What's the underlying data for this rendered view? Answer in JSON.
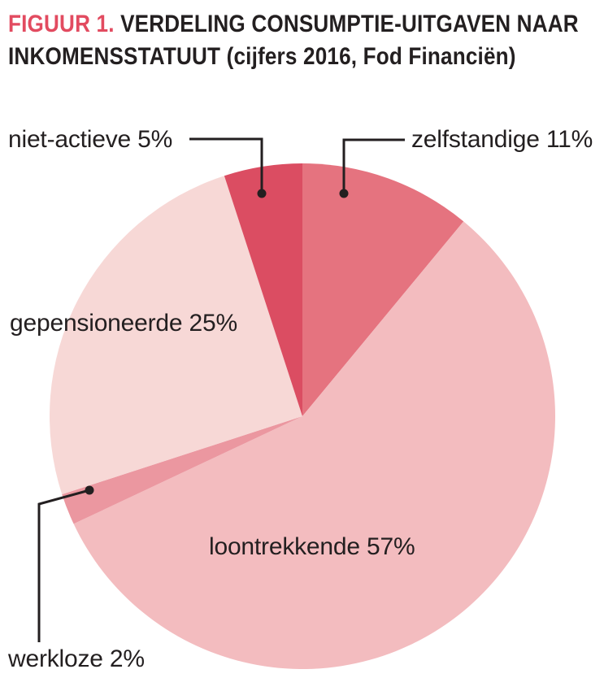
{
  "title": {
    "figure_label": "FIGUUR 1.",
    "line1_rest": "VERDELING CONSUMPTIE-UITGAVEN NAAR",
    "line2": "INKOMENSSTATUUT (cijfers 2016, Fod Financiën)",
    "accent_color": "#e24b60",
    "text_color": "#231f20"
  },
  "chart_data": {
    "type": "pie",
    "title": "Verdeling consumptie-uitgaven naar inkomensstatuut (cijfers 2016, Fod Financiën)",
    "start_angle": "12 o'clock",
    "direction": "clockwise",
    "legend_position": "callout-labels",
    "leader_color": "#231f20",
    "slices": [
      {
        "key": "zelfstandige",
        "label": "zelfstandige 11%",
        "value": 11,
        "color": "#e5737f"
      },
      {
        "key": "loontrekkende",
        "label": "loontrekkende 57%",
        "value": 57,
        "color": "#f3bcbf"
      },
      {
        "key": "werkloze",
        "label": "werkloze 2%",
        "value": 2,
        "color": "#eb97a0"
      },
      {
        "key": "gepensioneerde",
        "label": "gepensioneerde 25%",
        "value": 25,
        "color": "#f7d8d6"
      },
      {
        "key": "niet-actieve",
        "label": "niet-actieve 5%",
        "value": 5,
        "color": "#db4d62"
      }
    ]
  }
}
